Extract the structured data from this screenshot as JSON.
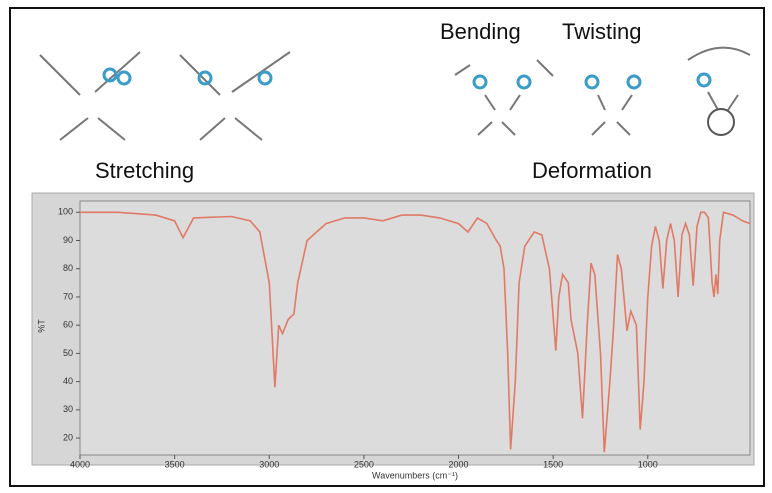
{
  "diagram": {
    "labels": [
      "Bending",
      "Twisting",
      "Stretching",
      "Deformation"
    ]
  },
  "chart_data": {
    "type": "line",
    "x_label": "Wavenumbers (cm⁻¹)",
    "y_label": "%T",
    "color": "#e07a66",
    "x": [
      4000,
      3800,
      3600,
      3500,
      3456,
      3400,
      3200,
      3100,
      3050,
      3000,
      2970,
      2950,
      2930,
      2900,
      2870,
      2850,
      2800,
      2700,
      2600,
      2500,
      2400,
      2300,
      2200,
      2100,
      2000,
      1950,
      1900,
      1850,
      1800,
      1780,
      1760,
      1740,
      1725,
      1700,
      1680,
      1650,
      1600,
      1560,
      1520,
      1486,
      1470,
      1450,
      1420,
      1406,
      1370,
      1345,
      1320,
      1300,
      1280,
      1250,
      1230,
      1200,
      1180,
      1160,
      1140,
      1110,
      1090,
      1060,
      1040,
      1020,
      1000,
      980,
      960,
      940,
      920,
      900,
      880,
      860,
      840,
      820,
      800,
      780,
      760,
      740,
      720,
      700,
      680,
      660,
      650,
      640,
      630,
      620,
      600,
      550,
      500,
      460
    ],
    "values": [
      100,
      100,
      99,
      97,
      91,
      98,
      98.5,
      97,
      93,
      75,
      38,
      60,
      57,
      62,
      64,
      75,
      90,
      96,
      98,
      98,
      97,
      99,
      99,
      98,
      96,
      93,
      98,
      96,
      90,
      88,
      80,
      50,
      16,
      40,
      75,
      88,
      93,
      92,
      80,
      51,
      70,
      78,
      75,
      62,
      50,
      27,
      60,
      82,
      78,
      50,
      15,
      40,
      60,
      85,
      80,
      58,
      65,
      60,
      23,
      40,
      70,
      88,
      95,
      90,
      73,
      90,
      96,
      90,
      70,
      92,
      96,
      92,
      74,
      95,
      100,
      100,
      98,
      75,
      70,
      78,
      71,
      90,
      100,
      99,
      97,
      96
    ],
    "xlim": [
      4000,
      460
    ],
    "ylim": [
      14,
      104
    ],
    "xticks": [
      4000,
      3500,
      3000,
      2500,
      2000,
      1500,
      1000
    ],
    "yticks": [
      100,
      90,
      80,
      70,
      60,
      50,
      40,
      30,
      20
    ]
  }
}
